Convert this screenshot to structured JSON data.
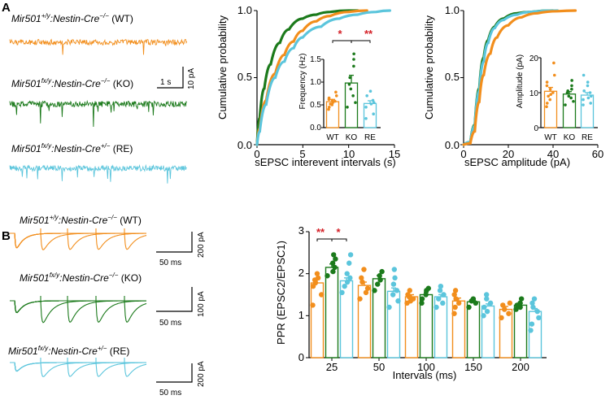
{
  "colors": {
    "WT": "#f28e1c",
    "KO": "#1b7a1b",
    "RE": "#5bc5dc",
    "sig": "#d41f26"
  },
  "panel_a": {
    "label": "A",
    "traces": [
      {
        "gene": "Mir501",
        "sup": "+/y",
        "cre": "Nestin-Cre",
        "cre_sup": "−/−",
        "group": "(WT)"
      },
      {
        "gene": "Mir501",
        "sup": "fx/y",
        "cre": "Nestin-Cre",
        "cre_sup": "−/−",
        "group": "(KO)"
      },
      {
        "gene": "Mir501",
        "sup": "fx/y",
        "cre": "Nestin-Cre",
        "cre_sup": "+/−",
        "group": "(RE)"
      }
    ],
    "scalebar": {
      "time": "1 s",
      "amp": "10 pA"
    }
  },
  "panel_b": {
    "label": "B",
    "traces": [
      {
        "gene": "Mir501",
        "sup": "+/y",
        "cre": "Nestin-Cre",
        "cre_sup": "−/−",
        "group": "(WT)",
        "amp": "200 pA",
        "time": "50 ms"
      },
      {
        "gene": "Mir501",
        "sup": "fx/y",
        "cre": "Nestin-Cre",
        "cre_sup": "−/−",
        "group": "(KO)",
        "amp": "100 pA",
        "time": "50 ms"
      },
      {
        "gene": "Mir501",
        "sup": "fx/y",
        "cre": "Nestin-Cre",
        "cre_sup": "+/−",
        "group": "(RE)",
        "amp": "200 pA",
        "time": "50 ms"
      }
    ]
  },
  "chart_data": [
    {
      "type": "line",
      "id": "cdf-interval",
      "title": "",
      "xlabel": "sEPSC interevent intervals (s)",
      "ylabel": "Cumulative probability",
      "xlim": [
        0,
        15
      ],
      "ylim": [
        0,
        1
      ],
      "xticks": [
        "0",
        "5",
        "10",
        "15"
      ],
      "yticks": [
        "0.0",
        "0.5",
        "1.0"
      ],
      "series": [
        {
          "name": "KO",
          "x": [
            0,
            0.3,
            0.8,
            1.5,
            2.5,
            3.5,
            5,
            6.5,
            8,
            10,
            11
          ],
          "y": [
            0,
            0.2,
            0.42,
            0.6,
            0.76,
            0.86,
            0.94,
            0.97,
            0.99,
            1.0,
            1.0
          ]
        },
        {
          "name": "WT",
          "x": [
            0,
            0.3,
            1,
            2,
            3,
            4,
            5,
            6.5,
            8,
            10,
            12
          ],
          "y": [
            0,
            0.12,
            0.33,
            0.53,
            0.67,
            0.77,
            0.85,
            0.92,
            0.96,
            0.99,
            1.0
          ]
        },
        {
          "name": "RE",
          "x": [
            0,
            0.3,
            1,
            2,
            3,
            4,
            5,
            7,
            9,
            11,
            13,
            14.5
          ],
          "y": [
            0,
            0.1,
            0.3,
            0.5,
            0.62,
            0.72,
            0.8,
            0.88,
            0.94,
            0.97,
            0.99,
            1.0
          ]
        }
      ]
    },
    {
      "type": "bar",
      "id": "inset-frequency",
      "ylabel": "Frequency (Hz)",
      "ylim": [
        0,
        1.5
      ],
      "yticks": [
        "0.0",
        "0.5",
        "1.0",
        "1.5"
      ],
      "categories": [
        "WT",
        "KO",
        "RE"
      ],
      "values": [
        0.57,
        0.98,
        0.53
      ],
      "errors": [
        0.05,
        0.17,
        0.06
      ],
      "points": [
        [
          0.4,
          0.45,
          0.5,
          0.52,
          0.55,
          0.58,
          0.6,
          0.62,
          0.65,
          0.7,
          0.78
        ],
        [
          0.45,
          0.55,
          0.7,
          0.85,
          0.95,
          1.1,
          1.35,
          1.5,
          1.62
        ],
        [
          0.2,
          0.3,
          0.45,
          0.52,
          0.55,
          0.6,
          0.7,
          0.8
        ]
      ],
      "significance": [
        {
          "from": 0,
          "to": 1,
          "label": "*"
        },
        {
          "from": 1,
          "to": 2,
          "label": "**"
        }
      ]
    },
    {
      "type": "line",
      "id": "cdf-amplitude",
      "xlabel": "sEPSC amplitude (pA)",
      "ylabel": "Cumulative probability",
      "xlim": [
        0,
        60
      ],
      "ylim": [
        0,
        1
      ],
      "xticks": [
        "0",
        "20",
        "40",
        "60"
      ],
      "yticks": [
        "0.0",
        "0.5",
        "1.0"
      ],
      "series": [
        {
          "name": "KO",
          "x": [
            0,
            3,
            5,
            7,
            9,
            11,
            14,
            18,
            24,
            30,
            40
          ],
          "y": [
            0,
            0.02,
            0.15,
            0.42,
            0.65,
            0.78,
            0.88,
            0.94,
            0.98,
            0.99,
            1.0
          ]
        },
        {
          "name": "RE",
          "x": [
            0,
            3,
            5,
            7,
            9,
            11,
            14,
            18,
            24,
            30,
            42
          ],
          "y": [
            0,
            0.02,
            0.14,
            0.4,
            0.62,
            0.76,
            0.87,
            0.93,
            0.97,
            0.99,
            1.0
          ]
        },
        {
          "name": "WT",
          "x": [
            0,
            3,
            5,
            7,
            9,
            12,
            15,
            20,
            26,
            33,
            42,
            50
          ],
          "y": [
            0,
            0.01,
            0.1,
            0.32,
            0.52,
            0.68,
            0.8,
            0.89,
            0.95,
            0.98,
            0.995,
            1.0
          ]
        }
      ]
    },
    {
      "type": "bar",
      "id": "inset-amplitude",
      "ylabel": "Amplitude (pA)",
      "ylim": [
        0,
        20
      ],
      "yticks": [
        "0",
        "10",
        "20"
      ],
      "categories": [
        "WT",
        "KO",
        "RE"
      ],
      "values": [
        10.4,
        9.6,
        9.3
      ],
      "errors": [
        1.1,
        0.7,
        0.7
      ],
      "points": [
        [
          6,
          7,
          8,
          9,
          9.5,
          10,
          11,
          12,
          13,
          15,
          18.5
        ],
        [
          6.5,
          7.5,
          8.5,
          9,
          10,
          10.5,
          11,
          12,
          13.5
        ],
        [
          6.5,
          7,
          8,
          8.5,
          9,
          10,
          10.5,
          12,
          13,
          15
        ]
      ]
    },
    {
      "type": "bar",
      "id": "ppr",
      "xlabel": "Intervals (ms)",
      "ylabel": "PPR (EPSC2/EPSC1)",
      "ylim": [
        0,
        3
      ],
      "yticks": [
        "0",
        "1",
        "2",
        "3"
      ],
      "categories": [
        "25",
        "50",
        "100",
        "150",
        "200"
      ],
      "series": [
        {
          "name": "WT",
          "values": [
            1.78,
            1.72,
            1.45,
            1.35,
            1.15
          ],
          "errors": [
            0.08,
            0.08,
            0.05,
            0.07,
            0.07
          ],
          "points": [
            [
              1.25,
              1.5,
              1.7,
              1.78,
              1.85,
              1.9,
              2.0
            ],
            [
              1.4,
              1.55,
              1.65,
              1.8,
              1.9,
              2.1
            ],
            [
              1.3,
              1.35,
              1.4,
              1.45,
              1.5,
              1.6
            ],
            [
              1.05,
              1.2,
              1.3,
              1.4,
              1.5,
              1.6
            ],
            [
              0.95,
              1.05,
              1.15,
              1.25,
              1.3
            ]
          ]
        },
        {
          "name": "KO",
          "values": [
            2.15,
            1.88,
            1.5,
            1.33,
            1.25
          ],
          "errors": [
            0.08,
            0.08,
            0.06,
            0.04,
            0.05
          ],
          "points": [
            [
              1.95,
              2.05,
              2.15,
              2.25,
              2.35,
              2.45
            ],
            [
              1.6,
              1.75,
              1.85,
              1.95,
              2.05
            ],
            [
              1.3,
              1.4,
              1.5,
              1.6,
              1.65
            ],
            [
              1.2,
              1.3,
              1.35,
              1.4
            ],
            [
              1.15,
              1.2,
              1.25,
              1.3,
              1.4
            ]
          ]
        },
        {
          "name": "RE",
          "values": [
            1.83,
            1.58,
            1.45,
            1.23,
            1.1
          ],
          "errors": [
            0.07,
            0.08,
            0.05,
            0.05,
            0.07
          ],
          "points": [
            [
              1.55,
              1.7,
              1.8,
              1.9,
              2.0,
              2.25,
              2.45
            ],
            [
              1.2,
              1.35,
              1.5,
              1.6,
              1.75,
              1.9,
              2.1
            ],
            [
              1.2,
              1.3,
              1.4,
              1.5,
              1.6,
              1.7
            ],
            [
              1.0,
              1.1,
              1.2,
              1.3,
              1.4,
              1.5
            ],
            [
              0.65,
              0.8,
              0.95,
              1.1,
              1.2,
              1.3,
              1.4
            ]
          ]
        }
      ],
      "significance": [
        {
          "group": 0,
          "from": 0,
          "to": 1,
          "label": "**"
        },
        {
          "group": 0,
          "from": 1,
          "to": 2,
          "label": "*"
        }
      ]
    }
  ]
}
